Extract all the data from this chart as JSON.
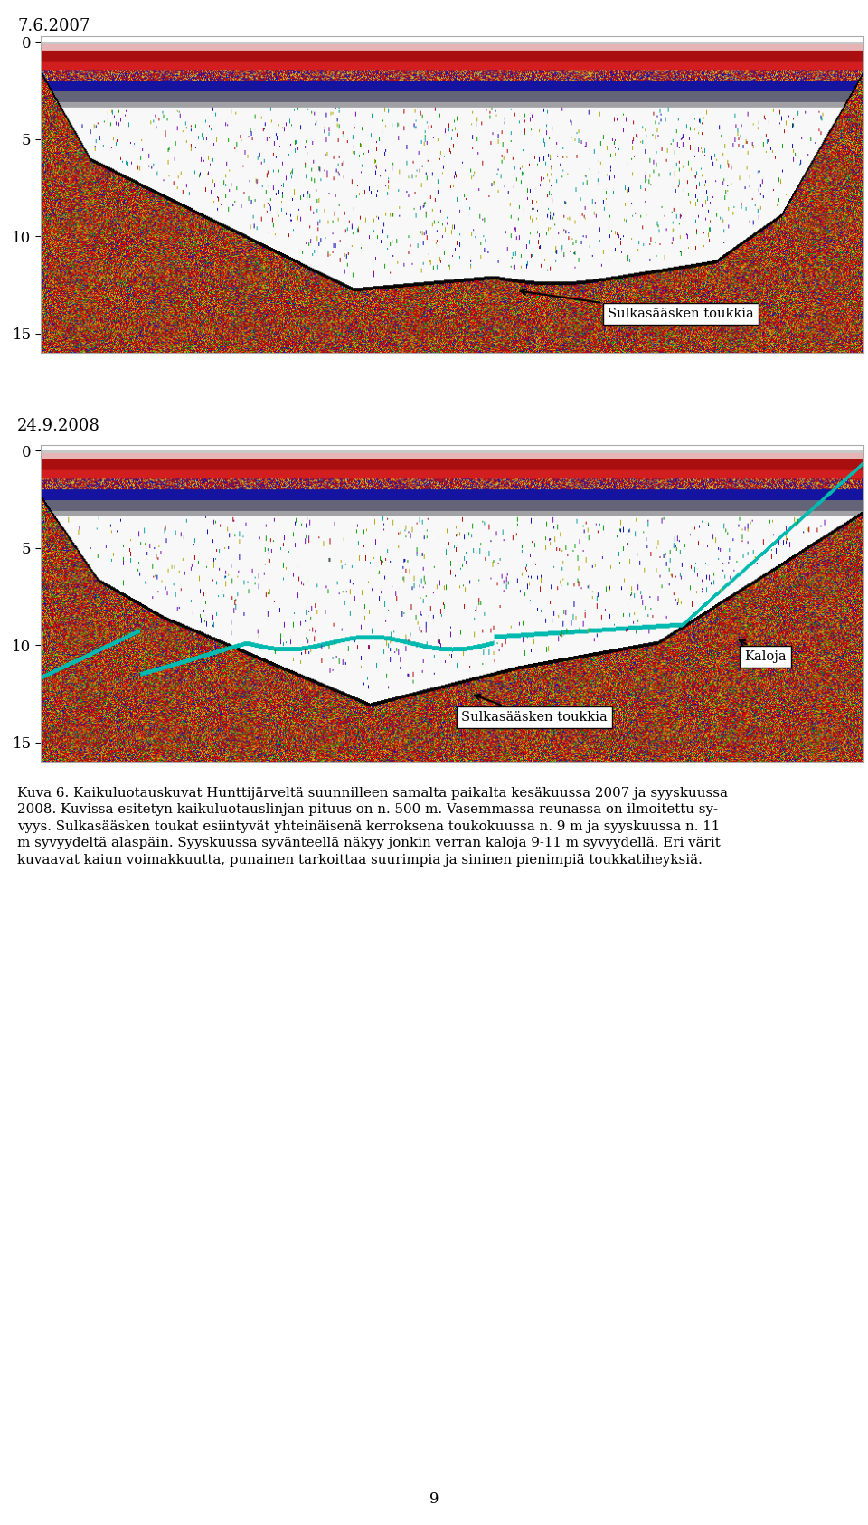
{
  "title1": "7.6.2007",
  "title2": "24.9.2008",
  "label1": "Sulkasääsken toukkia",
  "label2_1": "Kaloja",
  "label2_2": "Sulkasääsken toukkia",
  "caption_lines": [
    "Kuva 6. Kaikuluotauskuvat Hunttijärveltä suunnilleen samalta paikalta kesäkuussa 2007 ja syyskuussa",
    "2008. Kuvissa esitetyn kaikuluotauslinjan pituus on n. 500 m. Vasemmassa reunassa on ilmoitettu sy-",
    "vyys. Sulkasääsken toukat esiintyvät yhteinäisenä kerroksena toukokuussa n. 9 m ja syyskuussa n. 11",
    "m syvyydeltä alaspäin. Syyskuussa syvänteellä näkyy jonkin verran kaloja 9-11 m syvyydellä. Eri värit",
    "kuvaavat kaiun voimakkuutta, punainen tarkoittaa suurimpia ja sininen pienimpiä toukkatiheyksiä."
  ],
  "page_number": "9",
  "bg_color": "#ffffff",
  "fig_width": 9.6,
  "fig_height": 16.86,
  "img_depth_max": 16,
  "img_yticks": [
    0,
    5,
    10,
    15
  ]
}
